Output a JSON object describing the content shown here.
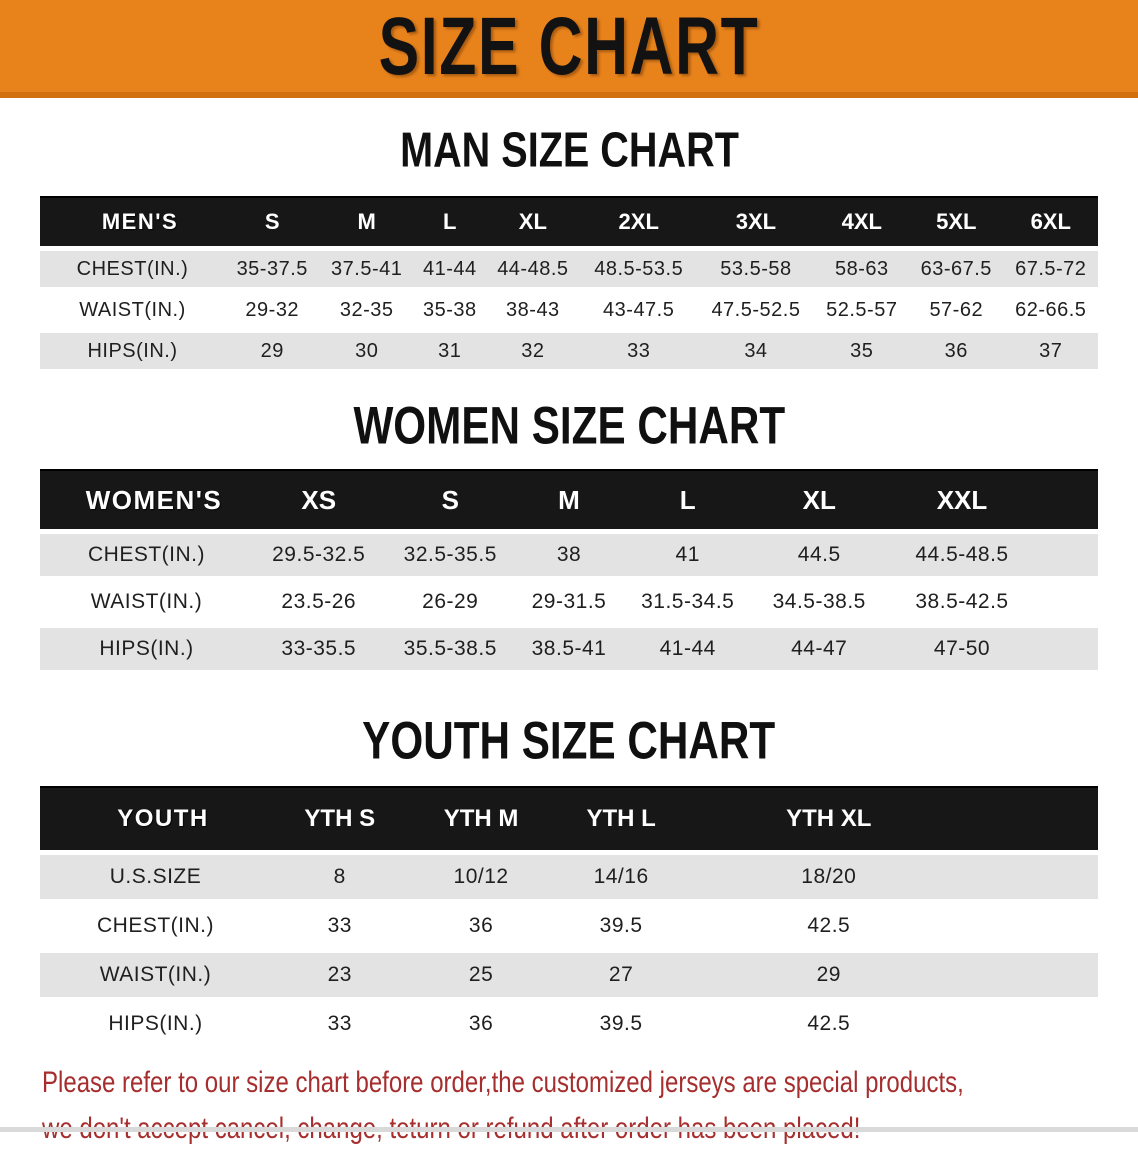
{
  "banner": {
    "title": "SIZE CHART"
  },
  "colors": {
    "banner_orange": "#E8831C",
    "banner_orange_edge": "#D2700F",
    "table_header_black": "#171717",
    "row_gray": "#E3E3E3",
    "note_red": "#A62E2E",
    "bottom_bar_gray": "#D9D9D9"
  },
  "sections": [
    {
      "heading": "MAN SIZE CHART",
      "table": {
        "corner_label": "MEN'S",
        "columns": [
          "S",
          "M",
          "L",
          "XL",
          "2XL",
          "3XL",
          "4XL",
          "5XL",
          "6XL"
        ],
        "rows": [
          {
            "label": "CHEST(IN.)",
            "values": [
              "35-37.5",
              "37.5-41",
              "41-44",
              "44-48.5",
              "48.5-53.5",
              "53.5-58",
              "58-63",
              "63-67.5",
              "67.5-72"
            ]
          },
          {
            "label": "WAIST(IN.)",
            "values": [
              "29-32",
              "32-35",
              "35-38",
              "38-43",
              "43-47.5",
              "47.5-52.5",
              "52.5-57",
              "57-62",
              "62-66.5"
            ]
          },
          {
            "label": "HIPS(IN.)",
            "values": [
              "29",
              "30",
              "31",
              "32",
              "33",
              "34",
              "35",
              "36",
              "37"
            ]
          }
        ]
      }
    },
    {
      "heading": "WOMEN SIZE CHART",
      "table": {
        "corner_label": "WOMEN'S",
        "columns": [
          "XS",
          "S",
          "M",
          "L",
          "XL",
          "XXL"
        ],
        "rows": [
          {
            "label": "CHEST(IN.)",
            "values": [
              "29.5-32.5",
              "32.5-35.5",
              "38",
              "41",
              "44.5",
              "44.5-48.5"
            ]
          },
          {
            "label": "WAIST(IN.)",
            "values": [
              "23.5-26",
              "26-29",
              "29-31.5",
              "31.5-34.5",
              "34.5-38.5",
              "38.5-42.5"
            ]
          },
          {
            "label": "HIPS(IN.)",
            "values": [
              "33-35.5",
              "35.5-38.5",
              "38.5-41",
              "41-44",
              "44-47",
              "47-50"
            ]
          }
        ]
      }
    },
    {
      "heading": "YOUTH SIZE CHART",
      "table": {
        "corner_label": "YOUTH",
        "columns": [
          "YTH S",
          "YTH M",
          "YTH L",
          "YTH XL"
        ],
        "rows": [
          {
            "label": "U.S.SIZE",
            "values": [
              "8",
              "10/12",
              "14/16",
              "18/20"
            ]
          },
          {
            "label": "CHEST(IN.)",
            "values": [
              "33",
              "36",
              "39.5",
              "42.5"
            ]
          },
          {
            "label": "WAIST(IN.)",
            "values": [
              "23",
              "25",
              "27",
              "29"
            ]
          },
          {
            "label": "HIPS(IN.)",
            "values": [
              "33",
              "36",
              "39.5",
              "42.5"
            ]
          }
        ]
      }
    }
  ],
  "footnote": {
    "line1": "Please refer to our size chart before order,the customized jerseys are special products,",
    "line2": "we don't accept cancel, change, teturn or refund after order has been placed!"
  }
}
